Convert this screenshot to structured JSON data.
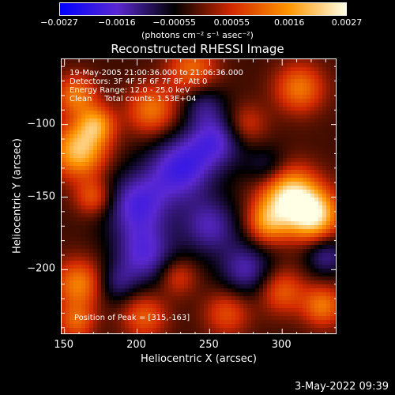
{
  "chart_data": {
    "type": "heatmap",
    "title": "Reconstructed RHESSI Image",
    "xlabel": "Heliocentric X (arcsec)",
    "ylabel": "Heliocentric Y (arcsec)",
    "xlim": [
      148,
      338
    ],
    "ylim": [
      -245,
      -55
    ],
    "xticks": [
      "150",
      "200",
      "250",
      "300"
    ],
    "xtick_values": [
      150,
      200,
      250,
      300
    ],
    "yticks": [
      "−100",
      "−150",
      "−200"
    ],
    "ytick_values": [
      -100,
      -150,
      -200
    ],
    "colorbar": {
      "ticks": [
        "−0.0027",
        "−0.0016",
        "−0.00055",
        "0.00055",
        "0.0016",
        "0.0027"
      ],
      "units": "(photons cm⁻² s⁻¹ asec⁻²)",
      "range": [
        -0.0027,
        0.0027
      ],
      "colors": [
        "#0000ff",
        "#5a28d2",
        "#000000",
        "#d22800",
        "#ff9600",
        "#ffffe6"
      ]
    },
    "annotations": [
      "19-May-2005 21:00:36.000 to 21:06:36.000",
      "Detectors: 3F 4F 5F 6F 7F 8F, Att 0",
      "Energy Range: 12.0 - 25.0 keV",
      "Clean     Total counts: 1.53E+04",
      "Position of Peak = [315,-163]"
    ],
    "sources": [
      {
        "x": 305,
        "y": -150,
        "sigma": 14,
        "amp": 1.0
      },
      {
        "x": 322,
        "y": -163,
        "sigma": 12,
        "amp": 0.9
      },
      {
        "x": 290,
        "y": -168,
        "sigma": 10,
        "amp": 0.55
      },
      {
        "x": 160,
        "y": -118,
        "sigma": 13,
        "amp": 0.85
      },
      {
        "x": 172,
        "y": -100,
        "sigma": 9,
        "amp": 0.6
      },
      {
        "x": 158,
        "y": -80,
        "sigma": 10,
        "amp": 0.55
      },
      {
        "x": 170,
        "y": -150,
        "sigma": 9,
        "amp": 0.45
      },
      {
        "x": 210,
        "y": -90,
        "sigma": 12,
        "amp": 0.55
      },
      {
        "x": 238,
        "y": -62,
        "sigma": 12,
        "amp": 0.5
      },
      {
        "x": 312,
        "y": -75,
        "sigma": 12,
        "amp": 0.55
      },
      {
        "x": 275,
        "y": -100,
        "sigma": 10,
        "amp": 0.35
      },
      {
        "x": 160,
        "y": -210,
        "sigma": 12,
        "amp": 0.6
      },
      {
        "x": 158,
        "y": -236,
        "sigma": 9,
        "amp": 0.45
      },
      {
        "x": 205,
        "y": -232,
        "sigma": 11,
        "amp": 0.45
      },
      {
        "x": 228,
        "y": -205,
        "sigma": 9,
        "amp": 0.35
      },
      {
        "x": 262,
        "y": -230,
        "sigma": 11,
        "amp": 0.4
      },
      {
        "x": 300,
        "y": -215,
        "sigma": 11,
        "amp": 0.45
      },
      {
        "x": 328,
        "y": -225,
        "sigma": 10,
        "amp": 0.55
      },
      {
        "x": 200,
        "y": -155,
        "sigma": 16,
        "amp": -0.55
      },
      {
        "x": 230,
        "y": -130,
        "sigma": 16,
        "amp": -0.6
      },
      {
        "x": 255,
        "y": -110,
        "sigma": 14,
        "amp": -0.5
      },
      {
        "x": 205,
        "y": -190,
        "sigma": 15,
        "amp": -0.5
      },
      {
        "x": 250,
        "y": -170,
        "sigma": 14,
        "amp": -0.45
      },
      {
        "x": 275,
        "y": -200,
        "sigma": 13,
        "amp": -0.45
      },
      {
        "x": 330,
        "y": -190,
        "sigma": 10,
        "amp": -0.4
      },
      {
        "x": 290,
        "y": -130,
        "sigma": 10,
        "amp": -0.3
      },
      {
        "x": 185,
        "y": -210,
        "sigma": 10,
        "amp": -0.3
      },
      {
        "x": 245,
        "y": -85,
        "sigma": 10,
        "amp": -0.3
      }
    ]
  },
  "footer": {
    "timestamp": "3-May-2022 09:39"
  }
}
